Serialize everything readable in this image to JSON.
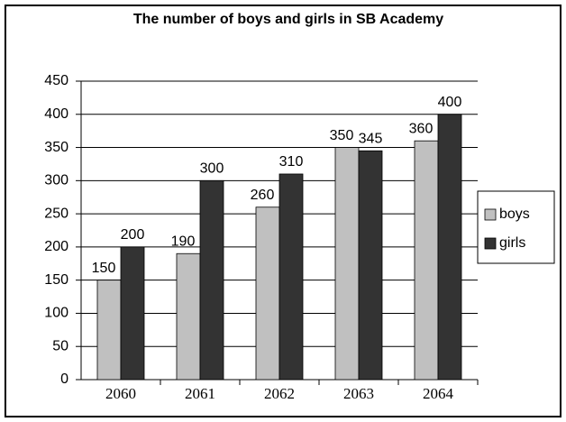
{
  "chart_data": {
    "type": "bar",
    "title": "The number of boys and girls in SB Academy",
    "categories": [
      "2060",
      "2061",
      "2062",
      "2063",
      "2064"
    ],
    "series": [
      {
        "name": "boys",
        "color": "#c0c0c0",
        "values": [
          150,
          190,
          260,
          350,
          360
        ]
      },
      {
        "name": "girls",
        "color": "#333333",
        "values": [
          200,
          300,
          310,
          345,
          400
        ]
      }
    ],
    "ylim": [
      0,
      450
    ],
    "yticks": [
      0,
      50,
      100,
      150,
      200,
      250,
      300,
      350,
      400,
      450
    ],
    "grid": true,
    "legend": "right"
  }
}
